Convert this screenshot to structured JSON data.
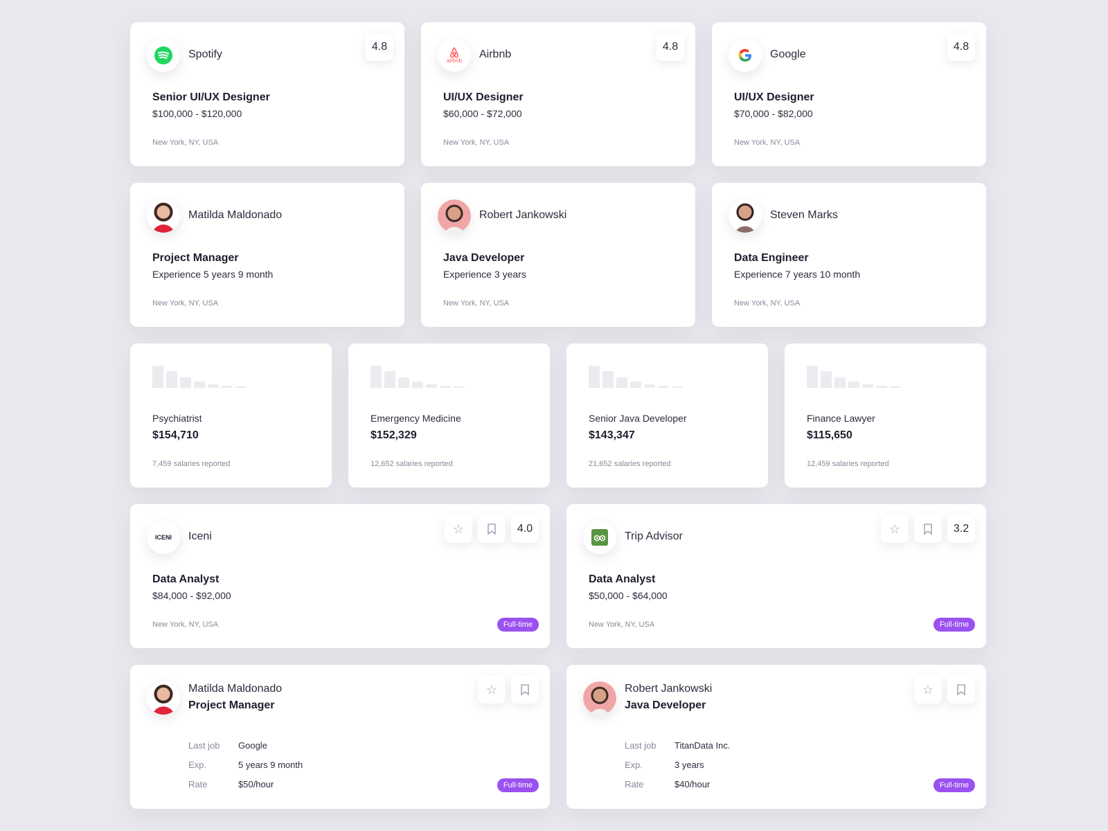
{
  "jobs": [
    {
      "company": "Spotify",
      "rating": "4.8",
      "title": "Senior UI/UX Designer",
      "salary": "$100,000 - $120,000",
      "location": "New York, NY, USA"
    },
    {
      "company": "Airbnb",
      "rating": "4.8",
      "title": "UI/UX Designer",
      "salary": "$60,000 - $72,000",
      "location": "New York, NY, USA",
      "logo_text": "airbnb"
    },
    {
      "company": "Google",
      "rating": "4.8",
      "title": "UI/UX Designer",
      "salary": "$70,000 - $82,000",
      "location": "New York, NY, USA"
    }
  ],
  "people": [
    {
      "name": "Matilda Maldonado",
      "role": "Project Manager",
      "experience": "Experience 5 years 9 month",
      "location": "New York, NY, USA"
    },
    {
      "name": "Robert Jankowski",
      "role": "Java Developer",
      "experience": "Experience 3 years",
      "location": "New York, NY, USA"
    },
    {
      "name": "Steven Marks",
      "role": "Data Engineer",
      "experience": "Experience 7 years 10 month",
      "location": "New York, NY, USA"
    }
  ],
  "salaries": [
    {
      "role": "Psychiatrist",
      "value": "$154,710",
      "count": "7,459 salaries reported"
    },
    {
      "role": "Emergency Medicine",
      "value": "$152,329",
      "count": "12,652 salaries reported"
    },
    {
      "role": "Senior Java Developer",
      "value": "$143,347",
      "count": "21,652 salaries reported"
    },
    {
      "role": "Finance Lawyer",
      "value": "$115,650",
      "count": "12,459 salaries reported"
    }
  ],
  "jobs_wide": [
    {
      "company": "Iceni",
      "logo_text": "ICENI",
      "rating": "4.0",
      "title": "Data Analyst",
      "salary": "$84,000 - $92,000",
      "location": "New York, NY, USA",
      "type": "Full-time"
    },
    {
      "company": "Trip Advisor",
      "rating": "3.2",
      "title": "Data Analyst",
      "salary": "$50,000 - $64,000",
      "location": "New York, NY, USA",
      "type": "Full-time"
    }
  ],
  "candidates": [
    {
      "name": "Matilda Maldonado",
      "role": "Project Manager",
      "last_job_label": "Last job",
      "last_job": "Google",
      "exp_label": "Exp.",
      "exp": "5 years 9 month",
      "rate_label": "Rate",
      "rate": "$50/hour",
      "type": "Full-time"
    },
    {
      "name": "Robert Jankowski",
      "role": "Java Developer",
      "last_job_label": "Last job",
      "last_job": "TitanData Inc.",
      "exp_label": "Exp.",
      "exp": "3 years",
      "rate_label": "Rate",
      "rate": "$40/hour",
      "type": "Full-time"
    }
  ],
  "colors": {
    "accent": "#9b51f0",
    "spotify": "#1ed760",
    "airbnb": "#ff5a5f",
    "tripadvisor": "#589442"
  }
}
